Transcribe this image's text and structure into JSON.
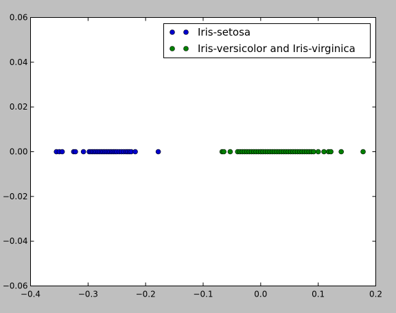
{
  "chart_data": {
    "type": "scatter",
    "title": "",
    "xlabel": "",
    "ylabel": "",
    "xlim": [
      -0.4,
      0.2
    ],
    "ylim": [
      -0.06,
      0.06
    ],
    "xticks": [
      -0.4,
      -0.3,
      -0.2,
      -0.1,
      0.0,
      0.1,
      0.2
    ],
    "yticks": [
      -0.06,
      -0.04,
      -0.02,
      0.0,
      0.02,
      0.04,
      0.06
    ],
    "xtick_labels": [
      "−0.4",
      "−0.3",
      "−0.2",
      "−0.1",
      "0.0",
      "0.1",
      "0.2"
    ],
    "ytick_labels": [
      "−0.06",
      "−0.04",
      "−0.02",
      "0.00",
      "0.02",
      "0.04",
      "0.06"
    ],
    "grid": false,
    "legend_position": "top-right",
    "series": [
      {
        "name": "Iris-setosa",
        "color": "#0000cc",
        "x": [
          -0.355,
          -0.35,
          -0.345,
          -0.325,
          -0.322,
          -0.308,
          -0.298,
          -0.295,
          -0.292,
          -0.289,
          -0.286,
          -0.283,
          -0.28,
          -0.277,
          -0.274,
          -0.271,
          -0.268,
          -0.265,
          -0.262,
          -0.259,
          -0.256,
          -0.253,
          -0.25,
          -0.246,
          -0.242,
          -0.238,
          -0.234,
          -0.231,
          -0.228,
          -0.225,
          -0.218,
          -0.178
        ],
        "y": [
          0,
          0,
          0,
          0,
          0,
          0,
          0,
          0,
          0,
          0,
          0,
          0,
          0,
          0,
          0,
          0,
          0,
          0,
          0,
          0,
          0,
          0,
          0,
          0,
          0,
          0,
          0,
          0,
          0,
          0,
          0,
          0
        ]
      },
      {
        "name": "Iris-versicolor and Iris-virginica",
        "color": "#007f00",
        "x": [
          -0.067,
          -0.064,
          -0.053,
          -0.04,
          -0.036,
          -0.032,
          -0.028,
          -0.024,
          -0.02,
          -0.016,
          -0.012,
          -0.008,
          -0.004,
          0.0,
          0.004,
          0.008,
          0.012,
          0.016,
          0.02,
          0.024,
          0.028,
          0.032,
          0.036,
          0.04,
          0.044,
          0.048,
          0.052,
          0.056,
          0.06,
          0.064,
          0.068,
          0.072,
          0.076,
          0.08,
          0.084,
          0.088,
          0.092,
          0.1,
          0.11,
          0.118,
          0.122,
          0.14,
          0.178
        ],
        "y": [
          0,
          0,
          0,
          0,
          0,
          0,
          0,
          0,
          0,
          0,
          0,
          0,
          0,
          0,
          0,
          0,
          0,
          0,
          0,
          0,
          0,
          0,
          0,
          0,
          0,
          0,
          0,
          0,
          0,
          0,
          0,
          0,
          0,
          0,
          0,
          0,
          0,
          0,
          0,
          0,
          0,
          0,
          0
        ]
      }
    ]
  }
}
